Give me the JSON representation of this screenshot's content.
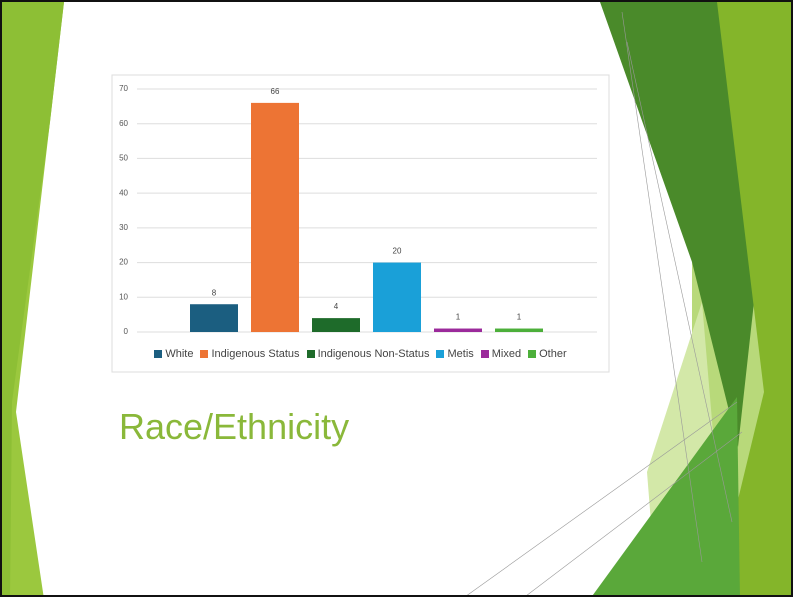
{
  "title": "Race/Ethnicity",
  "chart_data": {
    "type": "bar",
    "categories": [
      "White",
      "Indigenous Status",
      "Indigenous Non-Status",
      "Metis",
      "Mixed",
      "Other"
    ],
    "values": [
      8,
      66,
      4,
      20,
      1,
      1
    ],
    "colors": [
      "#1b5e80",
      "#ed7434",
      "#1e6b2a",
      "#1aa0d8",
      "#9b2a9b",
      "#4caf3a"
    ],
    "ylim": [
      0,
      70
    ],
    "yticks": [
      0,
      10,
      20,
      30,
      40,
      50,
      60,
      70
    ],
    "grid": true,
    "legend": "bottom"
  }
}
